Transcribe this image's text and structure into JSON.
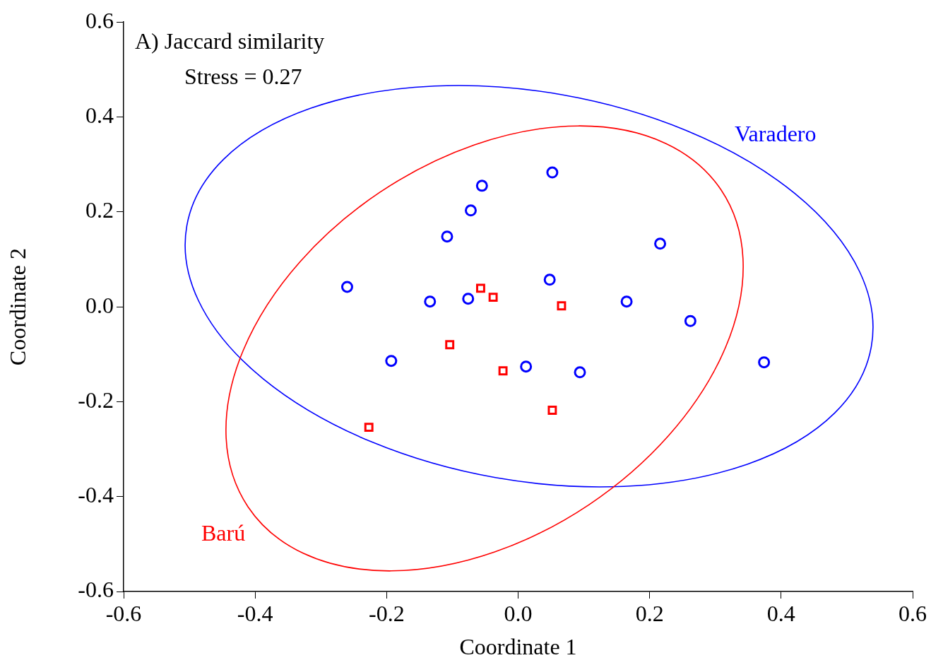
{
  "chart_data": {
    "type": "scatter",
    "title": "A) Jaccard similarity",
    "subtitle": "Stress = 0.27",
    "xlabel": "Coordinate 1",
    "ylabel": "Coordinate 2",
    "xlim": [
      -0.6,
      0.6
    ],
    "ylim": [
      -0.6,
      0.6
    ],
    "xticks": [
      -0.6,
      -0.4,
      -0.2,
      {
        "value": 0,
        "label": "0.0"
      },
      0.2,
      0.4,
      0.6
    ],
    "yticks": [
      -0.6,
      -0.4,
      -0.2,
      {
        "value": 0,
        "label": "0.0"
      },
      0.2,
      0.4,
      0.6
    ],
    "grid": false,
    "legend": false,
    "series": [
      {
        "type": "scatter",
        "name": "Varadero",
        "marker": "circle",
        "color": "#0000ff",
        "x": [
          -0.26,
          -0.193,
          -0.134,
          -0.108,
          -0.076,
          -0.072,
          -0.055,
          0.012,
          0.048,
          0.052,
          0.094,
          0.165,
          0.216,
          0.262,
          0.374
        ],
        "values": [
          0.042,
          -0.114,
          0.011,
          0.148,
          0.017,
          0.203,
          0.255,
          -0.126,
          0.057,
          0.283,
          -0.138,
          0.011,
          0.133,
          -0.03,
          -0.117
        ]
      },
      {
        "type": "scatter",
        "name": "Barú",
        "marker": "square",
        "color": "#ff0000",
        "x": [
          -0.227,
          -0.104,
          -0.057,
          -0.038,
          -0.023,
          0.052,
          0.066
        ],
        "values": [
          -0.254,
          -0.08,
          0.039,
          0.02,
          -0.135,
          -0.218,
          0.002
        ]
      }
    ]
  }
}
